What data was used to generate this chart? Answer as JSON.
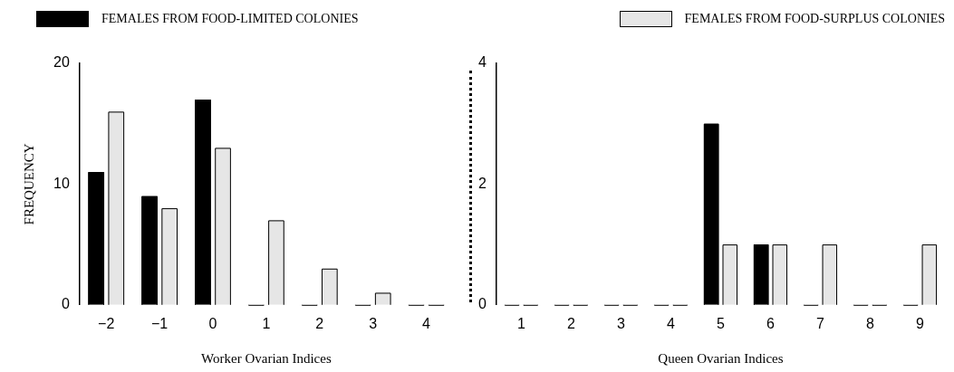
{
  "chart_data": [
    {
      "type": "bar",
      "xlabel": "Worker Ovarian Indices",
      "ylabel": "FREQUENCY",
      "categories": [
        "−2",
        "−1",
        "0",
        "1",
        "2",
        "3",
        "4"
      ],
      "legend": "top",
      "series": [
        {
          "name": "FEMALES FROM FOOD-LIMITED COLONIES",
          "color": "#000000",
          "values": [
            11,
            9,
            17,
            0,
            0,
            0,
            0
          ]
        },
        {
          "name": "FEMALES FROM FOOD-SURPLUS COLONIES",
          "color": "#e6e6e6",
          "values": [
            16,
            8,
            13,
            7,
            3,
            1,
            0
          ]
        }
      ],
      "ylim": [
        0,
        20
      ],
      "yticks": [
        0,
        10,
        20
      ],
      "grid": false
    },
    {
      "type": "bar",
      "xlabel": "Queen Ovarian Indices",
      "categories": [
        "1",
        "2",
        "3",
        "4",
        "5",
        "6",
        "7",
        "8",
        "9"
      ],
      "series": [
        {
          "color": "#000000",
          "values": [
            0,
            0,
            0,
            0,
            3,
            1,
            0,
            0,
            0
          ]
        },
        {
          "color": "#e6e6e6",
          "values": [
            0,
            0,
            0,
            0,
            1,
            1,
            1,
            0,
            1
          ]
        }
      ],
      "ylim": [
        0,
        4
      ],
      "yticks": [
        0,
        2,
        4
      ],
      "grid": false
    }
  ]
}
